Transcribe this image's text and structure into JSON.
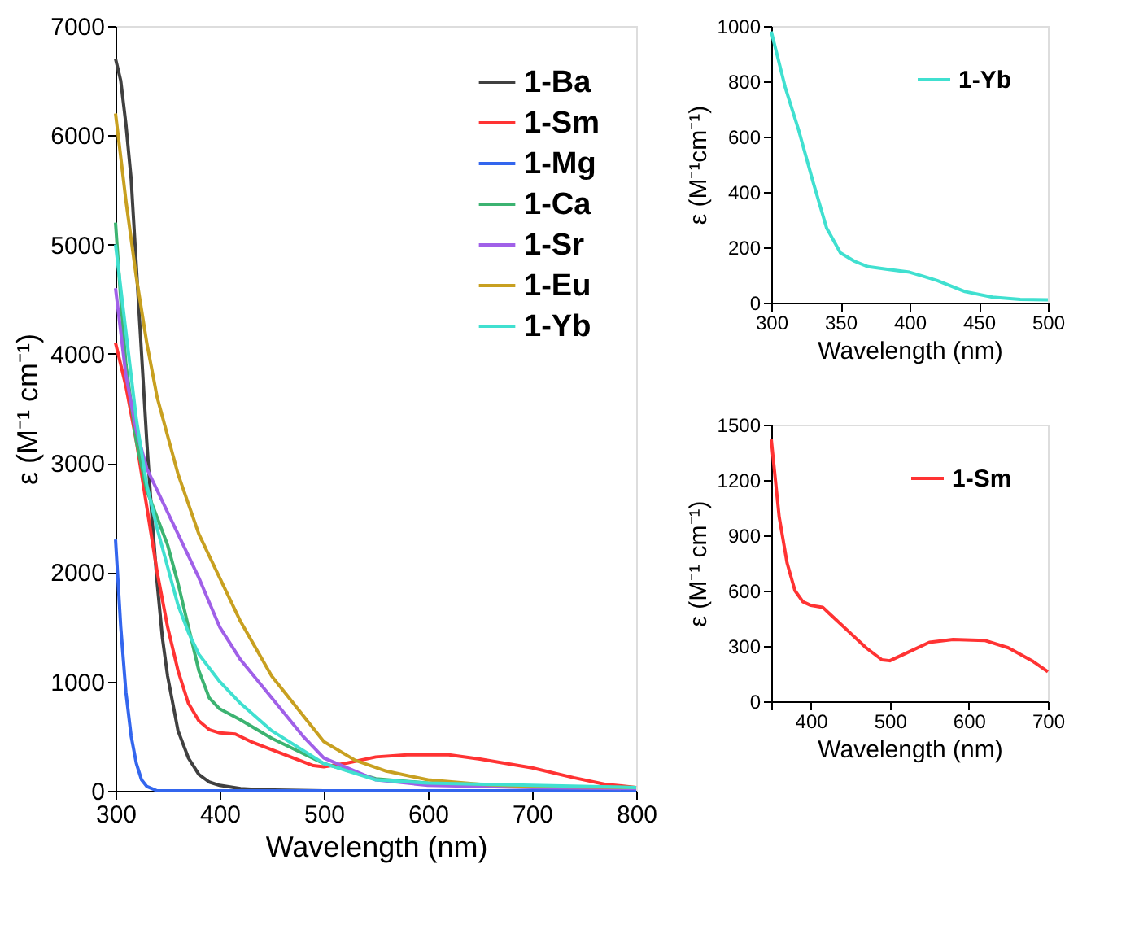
{
  "chart_data": [
    {
      "type": "line",
      "xlabel": "Wavelength (nm)",
      "ylabel": "ε (M⁻¹ cm⁻¹)",
      "xlim": [
        300,
        800
      ],
      "xticks": [
        300,
        400,
        500,
        600,
        700,
        800
      ],
      "ylim": [
        0,
        7000
      ],
      "yticks": [
        0,
        1000,
        2000,
        3000,
        4000,
        5000,
        6000,
        7000
      ],
      "grid": false,
      "legend": "top right",
      "line_style": "solid",
      "marker": "none",
      "series": [
        {
          "name": "1-Ba",
          "color": "#404040",
          "x": [
            300,
            305,
            310,
            315,
            320,
            325,
            330,
            335,
            340,
            345,
            350,
            360,
            370,
            380,
            390,
            400,
            420,
            440,
            500,
            800
          ],
          "values": [
            6700,
            6500,
            6100,
            5600,
            4800,
            4000,
            3200,
            2500,
            1900,
            1400,
            1050,
            550,
            300,
            150,
            80,
            50,
            20,
            10,
            0,
            0
          ]
        },
        {
          "name": "1-Sm",
          "color": "#ff3333",
          "x": [
            300,
            310,
            320,
            330,
            340,
            350,
            360,
            370,
            380,
            390,
            400,
            415,
            430,
            460,
            490,
            500,
            520,
            550,
            580,
            620,
            650,
            700,
            740,
            770,
            800
          ],
          "values": [
            4100,
            3700,
            3200,
            2600,
            2000,
            1500,
            1100,
            800,
            640,
            560,
            530,
            520,
            450,
            340,
            230,
            220,
            250,
            310,
            330,
            330,
            290,
            210,
            120,
            60,
            30
          ]
        },
        {
          "name": "1-Mg",
          "color": "#3366ee",
          "x": [
            300,
            305,
            310,
            315,
            320,
            325,
            330,
            340,
            800
          ],
          "values": [
            2300,
            1500,
            900,
            500,
            250,
            100,
            40,
            0,
            0
          ]
        },
        {
          "name": "1-Ca",
          "color": "#3cb371",
          "x": [
            300,
            305,
            310,
            320,
            330,
            340,
            350,
            360,
            370,
            380,
            390,
            400,
            420,
            450,
            500,
            550,
            600,
            700,
            800
          ],
          "values": [
            5200,
            4500,
            3900,
            3200,
            2750,
            2500,
            2250,
            1900,
            1500,
            1100,
            850,
            750,
            650,
            480,
            250,
            110,
            70,
            40,
            30
          ]
        },
        {
          "name": "1-Sr",
          "color": "#a060e8",
          "x": [
            300,
            310,
            320,
            330,
            340,
            350,
            360,
            380,
            400,
            420,
            450,
            480,
            500,
            550,
            600,
            700,
            800
          ],
          "values": [
            4600,
            3800,
            3300,
            2950,
            2750,
            2550,
            2350,
            1950,
            1500,
            1200,
            850,
            500,
            300,
            100,
            50,
            30,
            20
          ]
        },
        {
          "name": "1-Eu",
          "color": "#c8a020",
          "x": [
            300,
            310,
            320,
            330,
            340,
            360,
            380,
            400,
            420,
            450,
            500,
            530,
            560,
            600,
            650,
            700,
            800
          ],
          "values": [
            6200,
            5400,
            4700,
            4100,
            3600,
            2900,
            2350,
            1950,
            1550,
            1050,
            450,
            280,
            180,
            100,
            60,
            40,
            30
          ]
        },
        {
          "name": "1-Yb",
          "color": "#40e0d0",
          "x": [
            300,
            310,
            320,
            330,
            340,
            350,
            360,
            370,
            380,
            400,
            420,
            450,
            500,
            550,
            600,
            700,
            800
          ],
          "values": [
            5000,
            4200,
            3400,
            2800,
            2400,
            2050,
            1700,
            1450,
            1250,
            1000,
            800,
            550,
            250,
            100,
            70,
            50,
            30
          ]
        }
      ]
    },
    {
      "type": "line",
      "xlabel": "Wavelength (nm)",
      "ylabel": "ε (M⁻¹cm⁻¹)",
      "xlim": [
        300,
        500
      ],
      "xticks": [
        300,
        350,
        400,
        450,
        500
      ],
      "ylim": [
        0,
        1000
      ],
      "yticks": [
        0,
        200,
        400,
        600,
        800,
        1000
      ],
      "grid": false,
      "legend": "top right",
      "line_style": "solid",
      "marker": "none",
      "series": [
        {
          "name": "1-Yb",
          "color": "#40e0d0",
          "x": [
            300,
            310,
            320,
            330,
            340,
            350,
            360,
            370,
            385,
            400,
            410,
            420,
            440,
            460,
            480,
            500
          ],
          "values": [
            980,
            780,
            620,
            440,
            270,
            180,
            150,
            130,
            120,
            110,
            95,
            80,
            40,
            20,
            12,
            10
          ]
        }
      ]
    },
    {
      "type": "line",
      "xlabel": "Wavelength (nm)",
      "ylabel": "ε (M⁻¹ cm⁻¹)",
      "xlim": [
        350,
        700
      ],
      "xticks": [
        {
          "value": 350,
          "label": null
        },
        400,
        500,
        600,
        700
      ],
      "ylim": [
        0,
        1500
      ],
      "yticks": [
        0,
        300,
        600,
        900,
        1200,
        1500
      ],
      "grid": false,
      "legend": "top right",
      "line_style": "solid",
      "marker": "none",
      "series": [
        {
          "name": "1-Sm",
          "color": "#ff3333",
          "x": [
            350,
            360,
            370,
            380,
            390,
            400,
            415,
            430,
            450,
            470,
            490,
            500,
            520,
            550,
            580,
            620,
            650,
            680,
            700
          ],
          "values": [
            1420,
            1000,
            750,
            600,
            540,
            520,
            510,
            450,
            370,
            290,
            225,
            220,
            260,
            320,
            335,
            330,
            290,
            220,
            160
          ]
        }
      ]
    }
  ]
}
